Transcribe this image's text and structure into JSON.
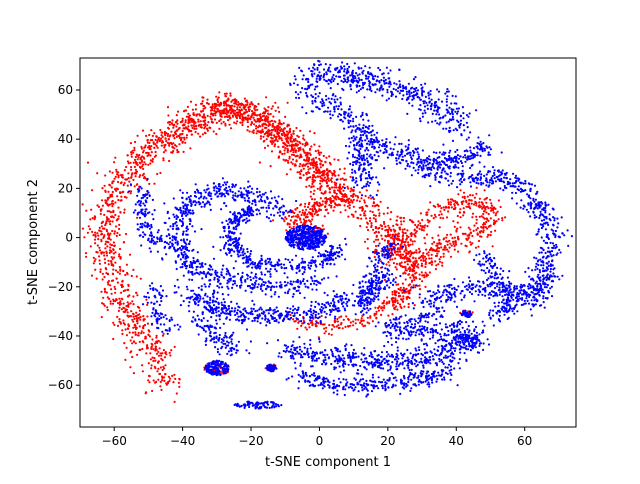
{
  "chart_data": {
    "type": "scatter",
    "title": "",
    "xlabel": "t-SNE component 1",
    "ylabel": "t-SNE component 2",
    "xlim": [
      -70,
      75
    ],
    "ylim": [
      -77,
      73
    ],
    "xticks": [
      -60,
      -40,
      -20,
      0,
      20,
      40,
      60
    ],
    "yticks": [
      -60,
      -40,
      -20,
      0,
      20,
      40,
      60
    ],
    "grid": false,
    "legend": "none",
    "colors": {
      "red_class": "#ff0000",
      "blue_class": "#0000ff",
      "axes": "#000000",
      "background": "#ffffff"
    },
    "series": [
      {
        "color": "#ff0000",
        "clusters": [
          {
            "shape": "curve",
            "points": [
              [
                -46,
                -60
              ],
              [
                -49,
                -45
              ],
              [
                -55,
                -33
              ],
              [
                -60,
                -18
              ],
              [
                -63,
                0
              ],
              [
                -60,
                18
              ],
              [
                -52,
                30
              ],
              [
                -40,
                43
              ],
              [
                -28,
                52
              ],
              [
                -18,
                49
              ],
              [
                -10,
                40
              ],
              [
                -4,
                30
              ],
              [
                3,
                22
              ],
              [
                12,
                14
              ],
              [
                20,
                2
              ],
              [
                24,
                -8
              ],
              [
                28,
                -12
              ]
            ],
            "spread": 3.0,
            "count": 1700
          },
          {
            "shape": "curve",
            "points": [
              [
                -55,
                30
              ],
              [
                -47,
                40
              ],
              [
                -38,
                47
              ],
              [
                -30,
                54
              ],
              [
                -22,
                53
              ],
              [
                -14,
                45
              ],
              [
                -6,
                34
              ],
              [
                2,
                24
              ]
            ],
            "spread": 2.5,
            "count": 500
          },
          {
            "shape": "curve",
            "points": [
              [
                22,
                -5
              ],
              [
                30,
                6
              ],
              [
                40,
                14
              ],
              [
                48,
                14
              ],
              [
                50,
                7
              ],
              [
                44,
                0
              ],
              [
                36,
                -4
              ],
              [
                30,
                -10
              ],
              [
                26,
                -20
              ],
              [
                22,
                -28
              ]
            ],
            "spread": 2.2,
            "count": 500
          },
          {
            "shape": "curve",
            "points": [
              [
                -8,
                -34
              ],
              [
                2,
                -36
              ],
              [
                12,
                -34
              ],
              [
                20,
                -28
              ],
              [
                24,
                -22
              ]
            ],
            "spread": 1.6,
            "count": 160
          },
          {
            "shape": "curve",
            "points": [
              [
                -10,
                5
              ],
              [
                -4,
                10
              ],
              [
                2,
                14
              ],
              [
                8,
                18
              ]
            ],
            "spread": 2.0,
            "count": 180
          },
          {
            "shape": "blob",
            "cx": -30,
            "cy": -53,
            "rx": 4,
            "ry": 3,
            "count": 40
          },
          {
            "shape": "blob",
            "cx": -14,
            "cy": -53,
            "rx": 2,
            "ry": 1.5,
            "count": 12
          },
          {
            "shape": "blob",
            "cx": 43,
            "cy": -31,
            "rx": 2,
            "ry": 1.5,
            "count": 12
          },
          {
            "shape": "blob",
            "cx": -2,
            "cy": 0,
            "rx": 5,
            "ry": 5,
            "count": 40
          }
        ]
      },
      {
        "color": "#0000ff",
        "clusters": [
          {
            "shape": "blob",
            "cx": -4,
            "cy": 0,
            "rx": 6,
            "ry": 5,
            "count": 420
          },
          {
            "shape": "blob",
            "cx": -30,
            "cy": -53,
            "rx": 3.5,
            "ry": 3,
            "count": 150
          },
          {
            "shape": "blob",
            "cx": -14,
            "cy": -53,
            "rx": 1.6,
            "ry": 1.4,
            "count": 40
          },
          {
            "shape": "blob",
            "cx": 43,
            "cy": -31,
            "rx": 1.6,
            "ry": 1.4,
            "count": 40
          },
          {
            "shape": "blob",
            "cx": -18,
            "cy": -68,
            "rx": 7,
            "ry": 1.5,
            "count": 90
          },
          {
            "shape": "curve",
            "points": [
              [
                -10,
                10
              ],
              [
                -20,
                18
              ],
              [
                -30,
                20
              ],
              [
                -38,
                14
              ],
              [
                -42,
                4
              ],
              [
                -40,
                -8
              ],
              [
                -34,
                -14
              ],
              [
                -24,
                -18
              ],
              [
                -12,
                -20
              ],
              [
                0,
                -18
              ]
            ],
            "spread": 2.2,
            "count": 700
          },
          {
            "shape": "curve",
            "points": [
              [
                -20,
                12
              ],
              [
                -26,
                6
              ],
              [
                -26,
                -4
              ],
              [
                -20,
                -10
              ],
              [
                -10,
                -12
              ],
              [
                0,
                -10
              ],
              [
                6,
                -4
              ]
            ],
            "spread": 1.6,
            "count": 420
          },
          {
            "shape": "curve",
            "points": [
              [
                -38,
                -22
              ],
              [
                -28,
                -30
              ],
              [
                -14,
                -32
              ],
              [
                0,
                -30
              ],
              [
                12,
                -24
              ],
              [
                20,
                -16
              ]
            ],
            "spread": 2.2,
            "count": 520
          },
          {
            "shape": "curve",
            "points": [
              [
                -36,
                -32
              ],
              [
                -30,
                -40
              ],
              [
                -24,
                -46
              ]
            ],
            "spread": 2.0,
            "count": 120
          },
          {
            "shape": "curve",
            "points": [
              [
                -10,
                -46
              ],
              [
                2,
                -48
              ],
              [
                14,
                -50
              ],
              [
                26,
                -50
              ],
              [
                38,
                -46
              ],
              [
                46,
                -38
              ]
            ],
            "spread": 2.4,
            "count": 520
          },
          {
            "shape": "curve",
            "points": [
              [
                -6,
                -56
              ],
              [
                4,
                -60
              ],
              [
                16,
                -60
              ],
              [
                28,
                -58
              ],
              [
                38,
                -54
              ]
            ],
            "spread": 1.8,
            "count": 300
          },
          {
            "shape": "curve",
            "points": [
              [
                20,
                -40
              ],
              [
                30,
                -38
              ],
              [
                40,
                -38
              ],
              [
                46,
                -44
              ]
            ],
            "spread": 1.8,
            "count": 200
          },
          {
            "shape": "curve",
            "points": [
              [
                -6,
                64
              ],
              [
                4,
                66
              ],
              [
                12,
                64
              ],
              [
                20,
                62
              ],
              [
                28,
                58
              ],
              [
                36,
                52
              ],
              [
                42,
                44
              ]
            ],
            "spread": 3.0,
            "count": 480
          },
          {
            "shape": "curve",
            "points": [
              [
                -6,
                58
              ],
              [
                6,
                52
              ],
              [
                12,
                44
              ],
              [
                14,
                36
              ],
              [
                12,
                28
              ],
              [
                14,
                20
              ]
            ],
            "spread": 2.4,
            "count": 300
          },
          {
            "shape": "curve",
            "points": [
              [
                14,
                40
              ],
              [
                24,
                34
              ],
              [
                32,
                30
              ],
              [
                40,
                32
              ],
              [
                50,
                36
              ]
            ],
            "spread": 2.2,
            "count": 300
          },
          {
            "shape": "curve",
            "points": [
              [
                30,
                26
              ],
              [
                44,
                24
              ],
              [
                56,
                24
              ],
              [
                64,
                12
              ]
            ],
            "spread": 2.2,
            "count": 240
          },
          {
            "shape": "curve",
            "points": [
              [
                64,
                14
              ],
              [
                68,
                0
              ],
              [
                66,
                -14
              ],
              [
                62,
                -26
              ]
            ],
            "spread": 2.0,
            "count": 260
          },
          {
            "shape": "curve",
            "points": [
              [
                28,
                -26
              ],
              [
                40,
                -22
              ],
              [
                52,
                -20
              ],
              [
                60,
                -24
              ],
              [
                66,
                -18
              ]
            ],
            "spread": 2.2,
            "count": 300
          },
          {
            "shape": "curve",
            "points": [
              [
                48,
                -8
              ],
              [
                52,
                -16
              ],
              [
                56,
                -28
              ],
              [
                50,
                -32
              ]
            ],
            "spread": 1.8,
            "count": 160
          },
          {
            "shape": "curve",
            "points": [
              [
                12,
                -30
              ],
              [
                16,
                -20
              ],
              [
                18,
                -8
              ],
              [
                22,
                -2
              ]
            ],
            "spread": 1.6,
            "count": 140
          },
          {
            "shape": "curve",
            "points": [
              [
                -52,
                20
              ],
              [
                -52,
                8
              ],
              [
                -48,
                -4
              ]
            ],
            "spread": 1.8,
            "count": 120
          },
          {
            "shape": "curve",
            "points": [
              [
                -48,
                -20
              ],
              [
                -48,
                -32
              ],
              [
                -42,
                -38
              ]
            ],
            "spread": 1.6,
            "count": 80
          },
          {
            "shape": "curve",
            "points": [
              [
                18,
                -36
              ],
              [
                28,
                -34
              ],
              [
                36,
                -30
              ]
            ],
            "spread": 1.4,
            "count": 80
          }
        ]
      }
    ]
  }
}
